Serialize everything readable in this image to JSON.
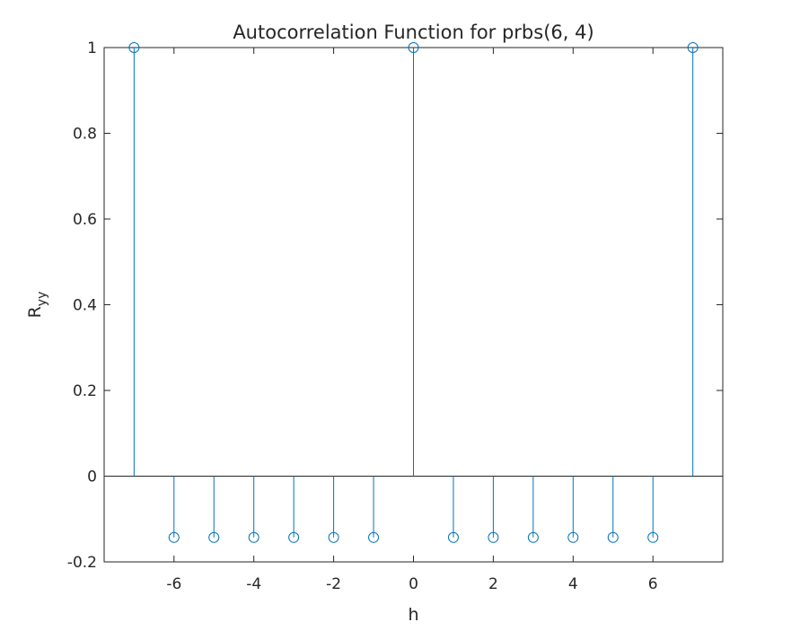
{
  "chart_data": {
    "type": "stem",
    "title": "Autocorrelation Function for prbs(6, 4)",
    "xlabel": "h",
    "ylabel": "R",
    "ylabel_subscript": "yy",
    "xlim": [
      -7.75,
      7.75
    ],
    "ylim": [
      -0.2,
      1
    ],
    "xticks": [
      -6,
      -4,
      -2,
      0,
      2,
      4,
      6
    ],
    "xtick_labels": [
      "-6",
      "-4",
      "-2",
      "0",
      "2",
      "4",
      "6"
    ],
    "yticks": [
      -0.2,
      0,
      0.2,
      0.4,
      0.6,
      0.8,
      1
    ],
    "ytick_labels": [
      "-0.2",
      "0",
      "0.2",
      "0.4",
      "0.6",
      "0.8",
      "1"
    ],
    "grid": false,
    "baseline": 0,
    "marker": "open-circle",
    "color": "#0072BD",
    "series": [
      {
        "x": [
          -7,
          -6,
          -5,
          -4,
          -3,
          -2,
          -1,
          0,
          1,
          2,
          3,
          4,
          5,
          6,
          7
        ],
        "values": [
          1,
          -0.143,
          -0.143,
          -0.143,
          -0.143,
          -0.143,
          -0.143,
          1,
          -0.143,
          -0.143,
          -0.143,
          -0.143,
          -0.143,
          -0.143,
          1
        ]
      }
    ]
  }
}
